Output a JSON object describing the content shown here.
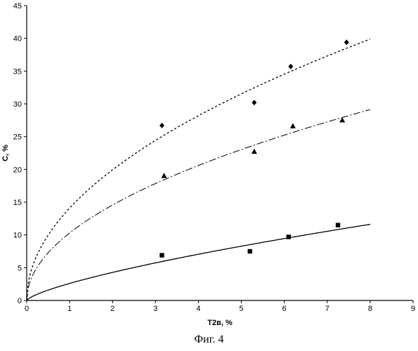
{
  "chart_data": {
    "type": "scatter",
    "xlabel": "T2в, %",
    "ylabel": "C, %",
    "xlim": [
      0,
      9
    ],
    "ylim": [
      0,
      45
    ],
    "x_ticks": [
      0,
      1,
      2,
      3,
      4,
      5,
      6,
      7,
      8,
      9
    ],
    "y_ticks": [
      0,
      5,
      10,
      15,
      20,
      25,
      30,
      35,
      40,
      45
    ],
    "grid": false,
    "series": [
      {
        "marker": "diamond",
        "line_style": "dotted",
        "points": [
          [
            3.15,
            26.7
          ],
          [
            5.3,
            30.2
          ],
          [
            6.15,
            35.7
          ],
          [
            7.45,
            39.4
          ]
        ],
        "trend": {
          "a": 14.1,
          "b": 0.5,
          "x_max": 8.0
        }
      },
      {
        "marker": "triangle",
        "line_style": "dash-dot",
        "points": [
          [
            3.2,
            19.0
          ],
          [
            5.3,
            22.7
          ],
          [
            6.2,
            26.6
          ],
          [
            7.35,
            27.5
          ]
        ],
        "trend": {
          "a": 10.3,
          "b": 0.5,
          "x_max": 8.0
        }
      },
      {
        "marker": "square",
        "line_style": "solid",
        "points": [
          [
            3.15,
            6.9
          ],
          [
            5.2,
            7.5
          ],
          [
            6.1,
            9.7
          ],
          [
            7.25,
            11.5
          ]
        ],
        "trend": {
          "a": 2.6,
          "b": 0.72,
          "x_max": 8.0
        }
      }
    ]
  },
  "caption": "Фиг. 4"
}
